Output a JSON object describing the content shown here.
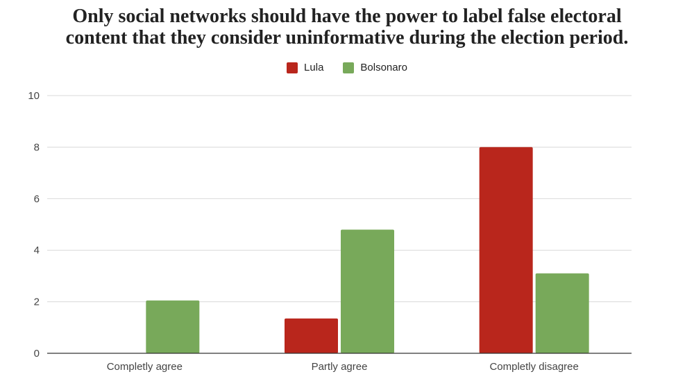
{
  "title_lines": [
    "Only social networks should have the power to label false electoral",
    "content that they consider uninformative during the election period."
  ],
  "colors": {
    "lula": "#b9261c",
    "bolsonaro": "#78a95a",
    "grid": "#d9d9d9",
    "axis": "#333333"
  },
  "chart_data": {
    "type": "bar",
    "title": "Only social networks should have the power to label false electoral content that they consider uninformative during the election period.",
    "categories": [
      "Completly agree",
      "Partly agree",
      "Completly disagree"
    ],
    "series": [
      {
        "name": "Lula",
        "values": [
          0,
          1.35,
          8
        ]
      },
      {
        "name": "Bolsonaro",
        "values": [
          2.05,
          4.8,
          3.1
        ]
      }
    ],
    "ylim": [
      0,
      10
    ],
    "yticks": [
      0,
      2,
      4,
      6,
      8,
      10
    ],
    "grid": true,
    "legend": "top-center"
  }
}
